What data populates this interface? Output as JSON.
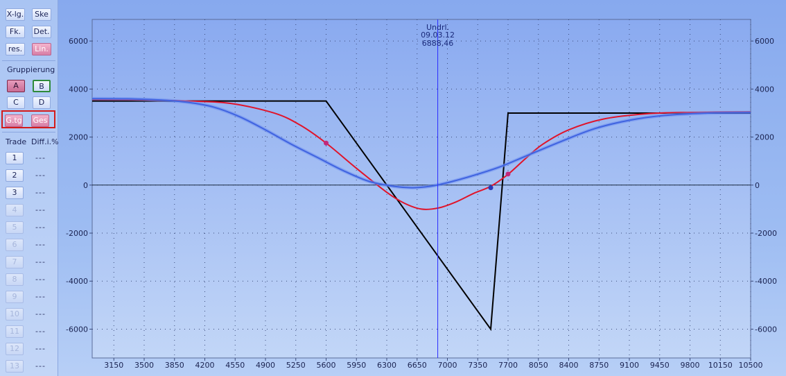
{
  "sidebar": {
    "top_buttons": [
      {
        "label": "X-lg.",
        "style": "normal"
      },
      {
        "label": "Ske",
        "style": "normal"
      },
      {
        "label": "Fk.",
        "style": "normal"
      },
      {
        "label": "Det.",
        "style": "normal"
      },
      {
        "label": "res.",
        "style": "normal"
      },
      {
        "label": "Lin.",
        "style": "pink"
      }
    ],
    "grouping_label": "Gruppierung",
    "group_buttons": [
      {
        "label": "A",
        "style": "pinkdark"
      },
      {
        "label": "B",
        "style": "green"
      },
      {
        "label": "C",
        "style": "normal"
      },
      {
        "label": "D",
        "style": "normal"
      },
      {
        "label": "G.tg",
        "style": "pink"
      },
      {
        "label": "Ges",
        "style": "pink"
      }
    ],
    "trade_header": "Trade",
    "diff_header": "Diff.i.%",
    "trades": [
      {
        "num": "1",
        "diff": "---",
        "enabled": true
      },
      {
        "num": "2",
        "diff": "---",
        "enabled": true
      },
      {
        "num": "3",
        "diff": "---",
        "enabled": true
      },
      {
        "num": "4",
        "diff": "---",
        "enabled": false
      },
      {
        "num": "5",
        "diff": "---",
        "enabled": false
      },
      {
        "num": "6",
        "diff": "---",
        "enabled": false
      },
      {
        "num": "7",
        "diff": "---",
        "enabled": false
      },
      {
        "num": "8",
        "diff": "---",
        "enabled": false
      },
      {
        "num": "9",
        "diff": "---",
        "enabled": false
      },
      {
        "num": "10",
        "diff": "---",
        "enabled": false
      },
      {
        "num": "11",
        "diff": "---",
        "enabled": false
      },
      {
        "num": "12",
        "diff": "---",
        "enabled": false
      },
      {
        "num": "13",
        "diff": "---",
        "enabled": false
      }
    ]
  },
  "chart_data": {
    "type": "line",
    "xlim": [
      2900,
      10500
    ],
    "ylim": [
      -7200,
      6900
    ],
    "x_ticks": [
      3150,
      3500,
      3850,
      4200,
      4550,
      4900,
      5250,
      5600,
      5950,
      6300,
      6650,
      7000,
      7350,
      7700,
      8050,
      8400,
      8750,
      9100,
      9450,
      9800,
      10150,
      10500
    ],
    "y_ticks": [
      6000,
      4000,
      2000,
      0,
      -2000,
      -4000,
      -6000
    ],
    "grid": true,
    "underlying": {
      "label": "Undrl.",
      "date": "09.03.12",
      "value": "6888,46",
      "x": 6888.46
    },
    "colors": {
      "expiry": "#000000",
      "red": "#e0142a",
      "blue": "#3f63e0",
      "marker": "#2a2aff",
      "zero": "#1a2a40"
    },
    "series": [
      {
        "key": "expiry",
        "points": [
          [
            2900,
            3500
          ],
          [
            5600,
            3500
          ],
          [
            7500,
            -6000
          ],
          [
            7700,
            3000
          ],
          [
            10500,
            3000
          ]
        ]
      },
      {
        "key": "red",
        "points": [
          [
            2900,
            3560
          ],
          [
            3500,
            3545
          ],
          [
            4000,
            3500
          ],
          [
            4500,
            3400
          ],
          [
            5000,
            3000
          ],
          [
            5300,
            2500
          ],
          [
            5600,
            1750
          ],
          [
            5950,
            700
          ],
          [
            6300,
            -300
          ],
          [
            6500,
            -750
          ],
          [
            6700,
            -1000
          ],
          [
            6900,
            -950
          ],
          [
            7100,
            -700
          ],
          [
            7300,
            -350
          ],
          [
            7500,
            -50
          ],
          [
            7700,
            450
          ],
          [
            7900,
            1100
          ],
          [
            8100,
            1700
          ],
          [
            8400,
            2300
          ],
          [
            8800,
            2750
          ],
          [
            9300,
            2970
          ],
          [
            9800,
            3030
          ],
          [
            10500,
            3050
          ]
        ]
      },
      {
        "key": "blue",
        "points": [
          [
            2900,
            3600
          ],
          [
            3300,
            3590
          ],
          [
            3700,
            3540
          ],
          [
            4000,
            3450
          ],
          [
            4300,
            3250
          ],
          [
            4600,
            2850
          ],
          [
            4900,
            2300
          ],
          [
            5200,
            1700
          ],
          [
            5500,
            1150
          ],
          [
            5800,
            600
          ],
          [
            6100,
            150
          ],
          [
            6400,
            -60
          ],
          [
            6600,
            -110
          ],
          [
            6800,
            -50
          ],
          [
            7000,
            100
          ],
          [
            7300,
            400
          ],
          [
            7600,
            750
          ],
          [
            7900,
            1200
          ],
          [
            8300,
            1800
          ],
          [
            8700,
            2350
          ],
          [
            9100,
            2700
          ],
          [
            9500,
            2900
          ],
          [
            10000,
            3000
          ],
          [
            10500,
            3020
          ]
        ]
      }
    ],
    "markers": [
      {
        "x": 5600,
        "y": 1750,
        "color": "#c2287a"
      },
      {
        "x": 7500,
        "y": -110,
        "color": "#2a38b8"
      },
      {
        "x": 7700,
        "y": 460,
        "color": "#c2287a"
      }
    ]
  }
}
